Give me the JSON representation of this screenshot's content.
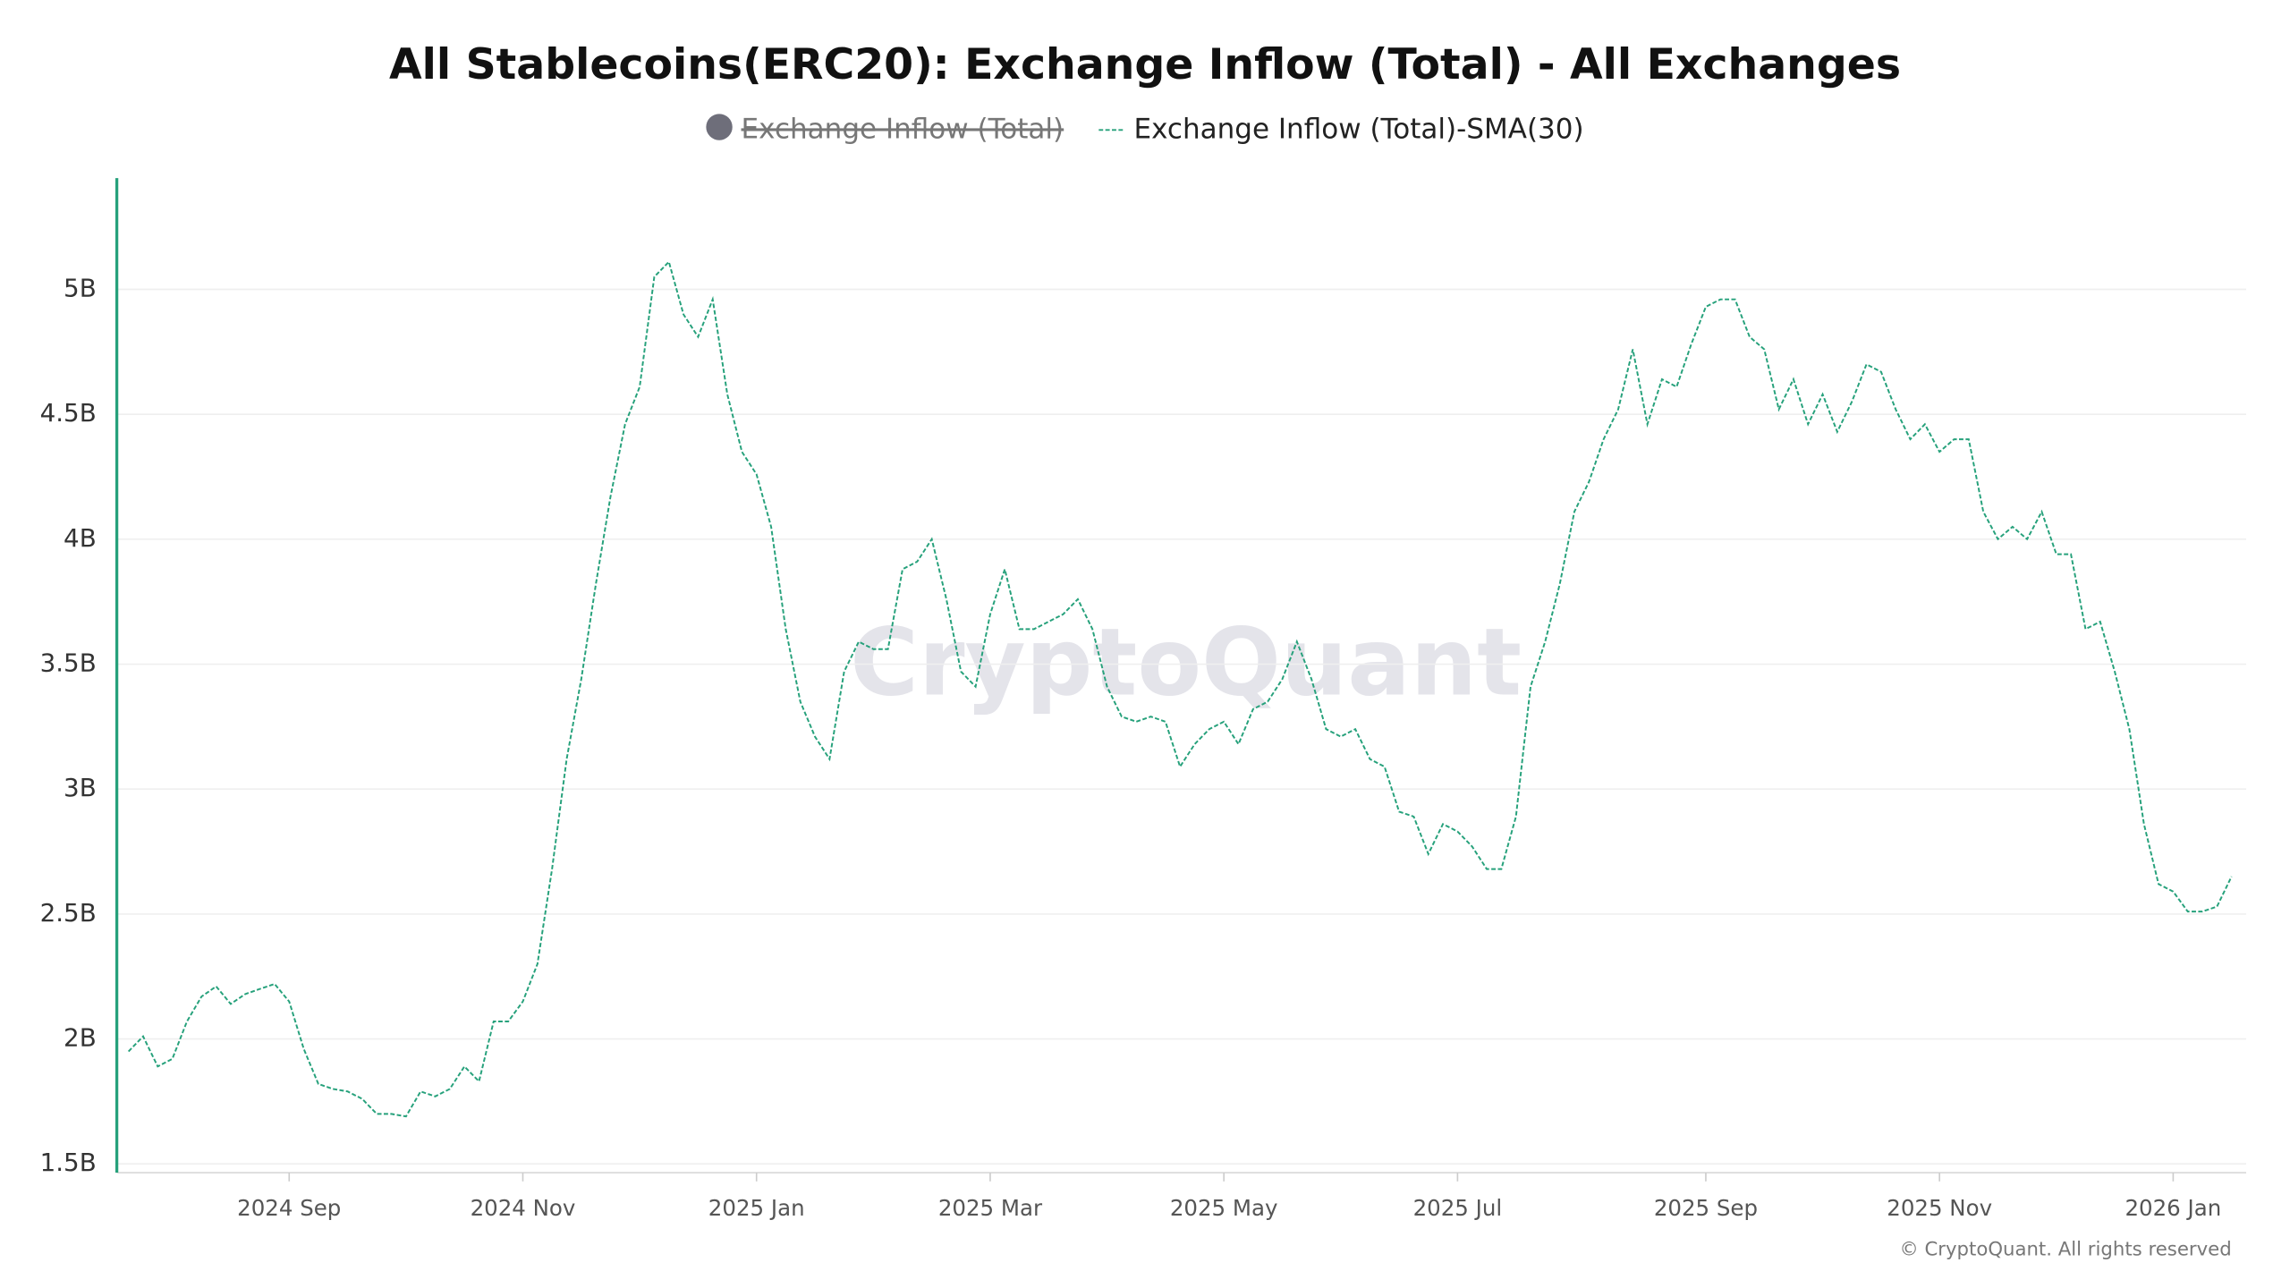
{
  "chart_data": {
    "type": "line",
    "title": "All Stablecoins(ERC20): Exchange Inflow (Total) - All Exchanges",
    "watermark": "CryptoQuant",
    "footer": "© CryptoQuant. All rights reserved",
    "hidden_series": [
      {
        "name": "Exchange Inflow (Total)",
        "color": "#6e6e7a"
      }
    ],
    "categories": [
      null,
      null,
      null,
      null,
      null,
      null,
      null,
      null,
      null,
      null,
      null,
      "2024 Sep",
      null,
      null,
      null,
      null,
      null,
      null,
      null,
      null,
      null,
      null,
      null,
      null,
      null,
      null,
      null,
      "2024 Nov",
      null,
      null,
      null,
      null,
      null,
      null,
      null,
      null,
      null,
      null,
      null,
      null,
      null,
      null,
      null,
      "2025 Jan",
      null,
      null,
      null,
      null,
      null,
      null,
      null,
      null,
      null,
      null,
      null,
      null,
      null,
      null,
      null,
      "2025 Mar",
      null,
      null,
      null,
      null,
      null,
      null,
      null,
      null,
      null,
      null,
      null,
      null,
      null,
      null,
      null,
      "2025 May",
      null,
      null,
      null,
      null,
      null,
      null,
      null,
      null,
      null,
      null,
      null,
      null,
      null,
      null,
      null,
      "2025 Jul",
      null,
      null,
      null,
      null,
      null,
      null,
      null,
      null,
      null,
      null,
      null,
      null,
      null,
      null,
      null,
      null,
      "2025 Sep",
      null,
      null,
      null,
      null,
      null,
      null,
      null,
      null,
      null,
      null,
      null,
      null,
      null,
      null,
      null,
      "2025 Nov",
      null,
      null,
      null,
      null,
      null,
      null,
      null,
      null,
      null,
      null,
      null,
      null,
      null,
      null,
      null,
      "2026 Jan",
      null,
      null,
      null,
      null
    ],
    "series": [
      {
        "name": "Exchange Inflow (Total)-SMA(30)",
        "color": "#26a17b",
        "dashed": true,
        "values": [
          1950000000.0,
          2010000000.0,
          1890000000.0,
          1920000000.0,
          2070000000.0,
          2170000000.0,
          2210000000.0,
          2140000000.0,
          2180000000.0,
          2200000000.0,
          2220000000.0,
          2150000000.0,
          1960000000.0,
          1820000000.0,
          1800000000.0,
          1790000000.0,
          1760000000.0,
          1700000000.0,
          1700000000.0,
          1690000000.0,
          1790000000.0,
          1770000000.0,
          1800000000.0,
          1890000000.0,
          1830000000.0,
          2070000000.0,
          2070000000.0,
          2150000000.0,
          2300000000.0,
          2680000000.0,
          3120000000.0,
          3440000000.0,
          3820000000.0,
          4170000000.0,
          4460000000.0,
          4610000000.0,
          5050000000.0,
          5110000000.0,
          4900000000.0,
          4810000000.0,
          4960000000.0,
          4580000000.0,
          4350000000.0,
          4260000000.0,
          4050000000.0,
          3640000000.0,
          3350000000.0,
          3210000000.0,
          3120000000.0,
          3470000000.0,
          3590000000.0,
          3560000000.0,
          3560000000.0,
          3880000000.0,
          3910000000.0,
          4000000000.0,
          3760000000.0,
          3470000000.0,
          3410000000.0,
          3700000000.0,
          3880000000.0,
          3640000000.0,
          3640000000.0,
          3670000000.0,
          3700000000.0,
          3760000000.0,
          3640000000.0,
          3410000000.0,
          3290000000.0,
          3270000000.0,
          3290000000.0,
          3270000000.0,
          3090000000.0,
          3180000000.0,
          3240000000.0,
          3270000000.0,
          3180000000.0,
          3320000000.0,
          3350000000.0,
          3440000000.0,
          3590000000.0,
          3440000000.0,
          3240000000.0,
          3210000000.0,
          3240000000.0,
          3120000000.0,
          3090000000.0,
          2910000000.0,
          2890000000.0,
          2740000000.0,
          2860000000.0,
          2830000000.0,
          2770000000.0,
          2680000000.0,
          2680000000.0,
          2890000000.0,
          3410000000.0,
          3590000000.0,
          3820000000.0,
          4110000000.0,
          4230000000.0,
          4400000000.0,
          4520000000.0,
          4760000000.0,
          4460000000.0,
          4640000000.0,
          4610000000.0,
          4780000000.0,
          4930000000.0,
          4960000000.0,
          4960000000.0,
          4810000000.0,
          4760000000.0,
          4520000000.0,
          4640000000.0,
          4460000000.0,
          4580000000.0,
          4430000000.0,
          4550000000.0,
          4700000000.0,
          4670000000.0,
          4520000000.0,
          4400000000.0,
          4460000000.0,
          4350000000.0,
          4400000000.0,
          4400000000.0,
          4110000000.0,
          4000000000.0,
          4050000000.0,
          4000000000.0,
          4110000000.0,
          3940000000.0,
          3940000000.0,
          3640000000.0,
          3670000000.0,
          3470000000.0,
          3240000000.0,
          2860000000.0,
          2620000000.0,
          2590000000.0,
          2510000000.0,
          2510000000.0,
          2530000000.0,
          2650000000.0
        ]
      }
    ],
    "ylim": [
      1465000000.0,
      5445000000.0
    ],
    "yticks": [
      {
        "value": 1500000000.0,
        "label": "1.5B"
      },
      {
        "value": 2000000000.0,
        "label": "2B"
      },
      {
        "value": 2500000000.0,
        "label": "2.5B"
      },
      {
        "value": 3000000000.0,
        "label": "3B"
      },
      {
        "value": 3500000000.0,
        "label": "3.5B"
      },
      {
        "value": 4000000000.0,
        "label": "4B"
      },
      {
        "value": 4500000000.0,
        "label": "4.5B"
      },
      {
        "value": 5000000000.0,
        "label": "5B"
      }
    ],
    "grid": true
  }
}
